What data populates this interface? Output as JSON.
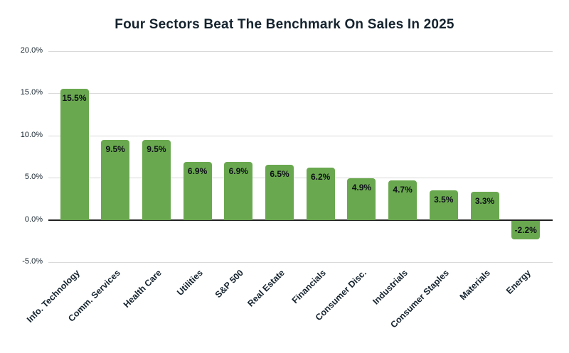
{
  "chart_data": {
    "type": "bar",
    "title": "Four Sectors Beat The Benchmark On Sales In 2025",
    "categories": [
      "Info. Technology",
      "Comm. Services",
      "Health Care",
      "Utilities",
      "S&P 500",
      "Real Estate",
      "Financials",
      "Consumer Disc.",
      "Industrials",
      "Consumer Staples",
      "Materials",
      "Energy"
    ],
    "values": [
      15.5,
      9.5,
      9.5,
      6.9,
      6.9,
      6.5,
      6.2,
      4.9,
      4.7,
      3.5,
      3.3,
      -2.2
    ],
    "value_labels": [
      "15.5%",
      "9.5%",
      "9.5%",
      "6.9%",
      "6.9%",
      "6.5%",
      "6.2%",
      "4.9%",
      "4.7%",
      "3.5%",
      "3.3%",
      "-2.2%"
    ],
    "xlabel": "",
    "ylabel": "",
    "ylim": [
      -5,
      20
    ],
    "yticks": [
      20,
      15,
      10,
      5,
      0,
      -5
    ],
    "ytick_labels": [
      "20.0%",
      "15.0%",
      "10.0%",
      "5.0%",
      "0.0%",
      "-5.0%"
    ],
    "grid": true,
    "legend": "none",
    "colors": {
      "bar_fill": "#6aa84f",
      "text": "#15232e",
      "gridline": "#d9d9d9",
      "zero_line": "#212121",
      "bar_label_text": "#0d1117",
      "background": "#ffffff"
    }
  }
}
